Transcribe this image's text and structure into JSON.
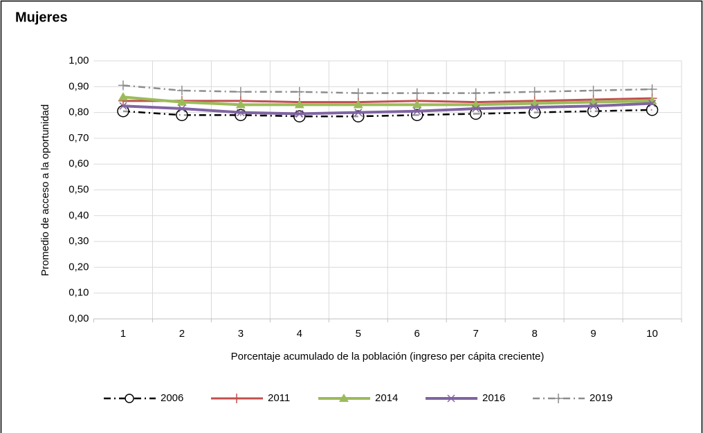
{
  "chart_data": {
    "type": "line",
    "title": "Mujeres",
    "x_label": "Porcentaje acumulado de la población (ingreso per cápita creciente)",
    "y_label": "Promedio de acceso a la oportunidad",
    "categories": [
      "1",
      "2",
      "3",
      "4",
      "5",
      "6",
      "7",
      "8",
      "9",
      "10"
    ],
    "ylim": [
      0,
      1
    ],
    "yticks": [
      {
        "value": 0,
        "label": "0,00"
      },
      {
        "value": 0.1,
        "label": "0,10"
      },
      {
        "value": 0.2,
        "label": "0,20"
      },
      {
        "value": 0.3,
        "label": "0,30"
      },
      {
        "value": 0.4,
        "label": "0,40"
      },
      {
        "value": 0.5,
        "label": "0,50"
      },
      {
        "value": 0.6,
        "label": "0,60"
      },
      {
        "value": 0.7,
        "label": "0,70"
      },
      {
        "value": 0.8,
        "label": "0,80"
      },
      {
        "value": 0.9,
        "label": "0,90"
      },
      {
        "value": 1,
        "label": "1,00"
      }
    ],
    "grid": true,
    "legend": "bottom",
    "series": [
      {
        "name": "2006",
        "color": "#000000",
        "dash": "dash-dot",
        "marker": "circle",
        "values": [
          0.805,
          0.79,
          0.79,
          0.785,
          0.785,
          0.79,
          0.795,
          0.8,
          0.805,
          0.81
        ]
      },
      {
        "name": "2011",
        "color": "#c0504d",
        "dash": "solid",
        "marker": "plus",
        "values": [
          0.845,
          0.845,
          0.845,
          0.84,
          0.84,
          0.845,
          0.84,
          0.845,
          0.85,
          0.855
        ]
      },
      {
        "name": "2014",
        "color": "#9bbb59",
        "dash": "solid",
        "marker": "triangle",
        "values": [
          0.86,
          0.84,
          0.83,
          0.83,
          0.83,
          0.83,
          0.83,
          0.835,
          0.84,
          0.845
        ]
      },
      {
        "name": "2016",
        "color": "#8064a2",
        "dash": "solid",
        "marker": "x",
        "values": [
          0.825,
          0.815,
          0.8,
          0.795,
          0.8,
          0.805,
          0.815,
          0.82,
          0.825,
          0.835
        ]
      },
      {
        "name": "2019",
        "color": "#8c8c8c",
        "dash": "dash-dot",
        "marker": "plus",
        "values": [
          0.905,
          0.885,
          0.88,
          0.88,
          0.875,
          0.875,
          0.875,
          0.88,
          0.885,
          0.89
        ]
      }
    ]
  }
}
